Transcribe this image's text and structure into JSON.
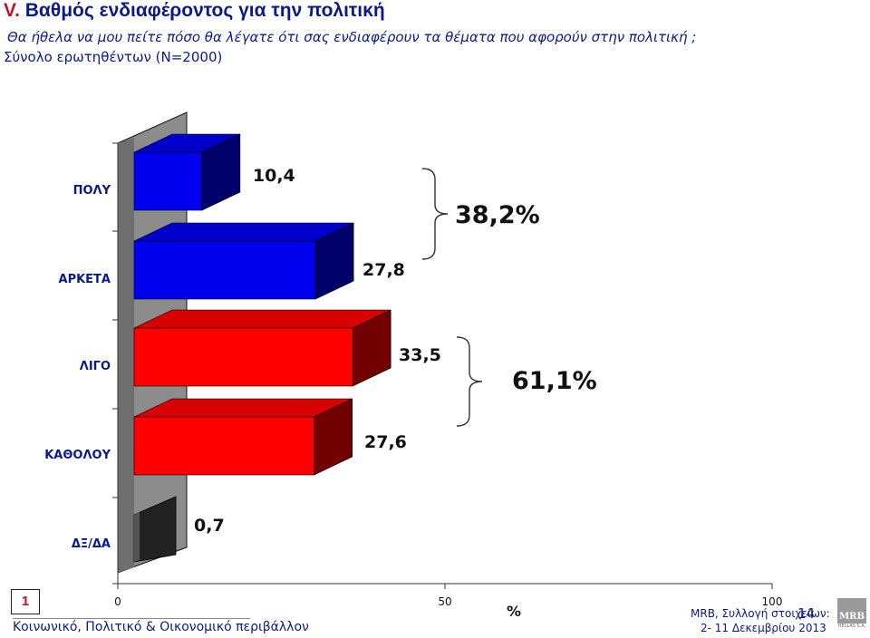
{
  "header": {
    "number": "V.",
    "title": "Βαθμός ενδιαφέροντος για την πολιτική",
    "question": "Θα ήθελα να μου πείτε πόσο θα λέγατε ότι σας ενδιαφέρουν τα θέματα που αφορούν στην πολιτική ;",
    "sample": "Σύνολο ερωτηθέντων (N=2000)"
  },
  "chart_data": {
    "type": "bar",
    "orientation": "horizontal",
    "categories": [
      "ΠΟΛΥ",
      "ΑΡΚΕΤΑ",
      "ΛΙΓΟ",
      "ΚΑΘΟΛΟΥ",
      "ΔΞ/ΔΑ"
    ],
    "values": [
      10.4,
      27.8,
      33.5,
      27.6,
      0.7
    ],
    "value_labels": [
      "10,4",
      "27,8",
      "33,5",
      "27,6",
      "0,7"
    ],
    "bar_colors": [
      "#0000ee",
      "#0000ee",
      "#ff0000",
      "#ff0000",
      "#222222"
    ],
    "xlim": [
      0,
      100
    ],
    "xticks": [
      "0",
      "50",
      "100"
    ],
    "xlabel": "%",
    "groups": [
      {
        "label": "38,2%",
        "categories": [
          "ΠΟΛΥ",
          "ΑΡΚΕΤΑ"
        ]
      },
      {
        "label": "61,1%",
        "categories": [
          "ΛΙΓΟ",
          "ΚΑΘΟΛΟΥ"
        ]
      }
    ]
  },
  "footer": {
    "box": "1",
    "left": "Κοινωνικό, Πολιτικό & Οικονομικό περιβάλλον",
    "source": "MRB, Συλλογή στοιχείων:",
    "dates": "2- 11 Δεκεμβρίου 2013",
    "page": "14",
    "logo": "MRB",
    "logo_sub": "HELLAS S.A."
  }
}
